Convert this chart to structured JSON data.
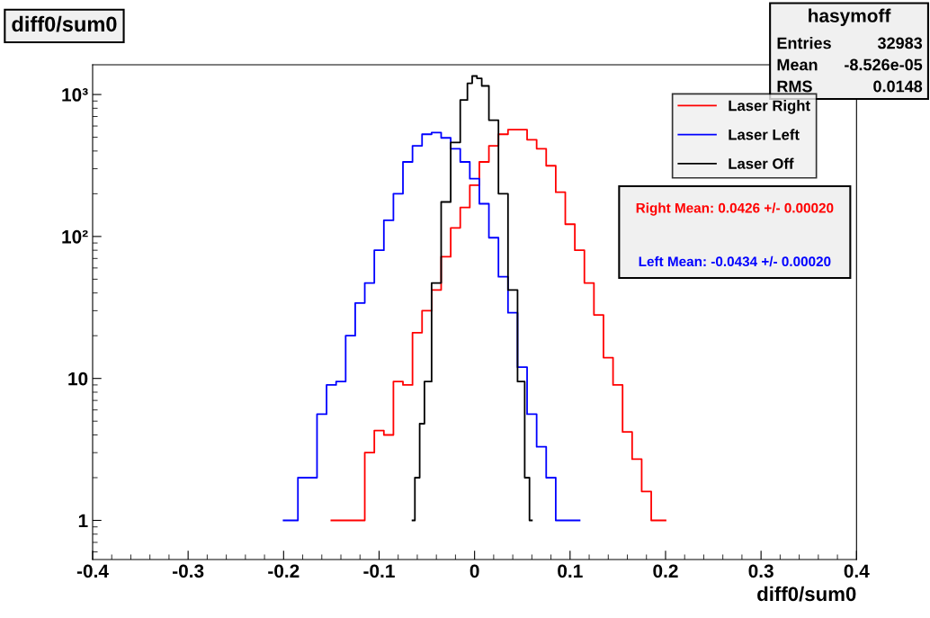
{
  "chart_data": {
    "type": "step",
    "title": "diff0/sum0",
    "xlabel": "diff0/sum0",
    "log": "y",
    "grid": false,
    "legend": "top right",
    "marker": "none",
    "line_style": "solid",
    "xlim": [
      -0.4,
      0.4
    ],
    "xticks": [
      -0.4,
      -0.3,
      -0.2,
      -0.1,
      0,
      0.1,
      0.2,
      0.3,
      0.4
    ],
    "ylim": [
      0.53,
      1620
    ],
    "yticks": [
      1,
      10,
      {
        "value": 100,
        "label": "10²"
      },
      {
        "value": 1000,
        "label": "10³"
      }
    ],
    "series": [
      {
        "name": "Laser Right",
        "color": "#ff0000",
        "x": [
          -0.15,
          -0.14,
          -0.13,
          -0.12,
          -0.11,
          -0.1,
          -0.09,
          -0.08,
          -0.07,
          -0.06,
          -0.05,
          -0.04,
          -0.03,
          -0.02,
          -0.01,
          0,
          0.01,
          0.02,
          0.03,
          0.04,
          0.05,
          0.06,
          0.07,
          0.08,
          0.09,
          0.1,
          0.11,
          0.12,
          0.13,
          0.14,
          0.15,
          0.16,
          0.17,
          0.18,
          0.19,
          0.2
        ],
        "values": [
          1,
          1,
          1,
          1,
          3,
          4.3,
          4,
          9.5,
          9,
          21,
          30,
          42,
          72,
          115,
          160,
          230,
          335,
          435,
          525,
          565,
          565,
          480,
          415,
          315,
          205,
          122,
          80,
          47,
          28,
          14,
          9,
          4.2,
          2.7,
          1.6,
          1,
          1
        ]
      },
      {
        "name": "Laser Left",
        "color": "#0000ff",
        "x": [
          -0.2,
          -0.19,
          -0.18,
          -0.17,
          -0.16,
          -0.15,
          -0.14,
          -0.13,
          -0.12,
          -0.11,
          -0.1,
          -0.09,
          -0.08,
          -0.07,
          -0.06,
          -0.05,
          -0.04,
          -0.03,
          -0.02,
          -0.01,
          0,
          0.01,
          0.02,
          0.03,
          0.04,
          0.05,
          0.06,
          0.07,
          0.08,
          0.09,
          0.1,
          0.11
        ],
        "values": [
          1,
          1,
          2,
          2,
          5.6,
          9,
          9.5,
          20,
          34,
          47,
          80,
          130,
          200,
          335,
          435,
          525,
          540,
          495,
          415,
          335,
          255,
          170,
          98,
          52,
          29,
          12,
          5.6,
          3.3,
          2,
          1,
          1,
          1
        ]
      },
      {
        "name": "Laser Off",
        "color": "#000000",
        "x": [
          -0.065,
          -0.06,
          -0.055,
          -0.05,
          -0.04,
          -0.03,
          -0.02,
          -0.01,
          -0.005,
          0,
          0.005,
          0.01,
          0.02,
          0.03,
          0.04,
          0.05,
          0.055,
          0.06
        ],
        "values": [
          1,
          2,
          4.8,
          9.5,
          47,
          175,
          460,
          915,
          1200,
          1350,
          1300,
          1150,
          660,
          200,
          42,
          9.5,
          2,
          1
        ]
      }
    ],
    "annotations": [
      "hasymoff",
      "Entries",
      "32983",
      "Mean",
      "-8.526e-05",
      "RMS",
      "0.0148",
      "Right Mean: 0.0426 +/- 0.00020",
      "Left Mean: -0.0434 +/- 0.00020"
    ]
  }
}
